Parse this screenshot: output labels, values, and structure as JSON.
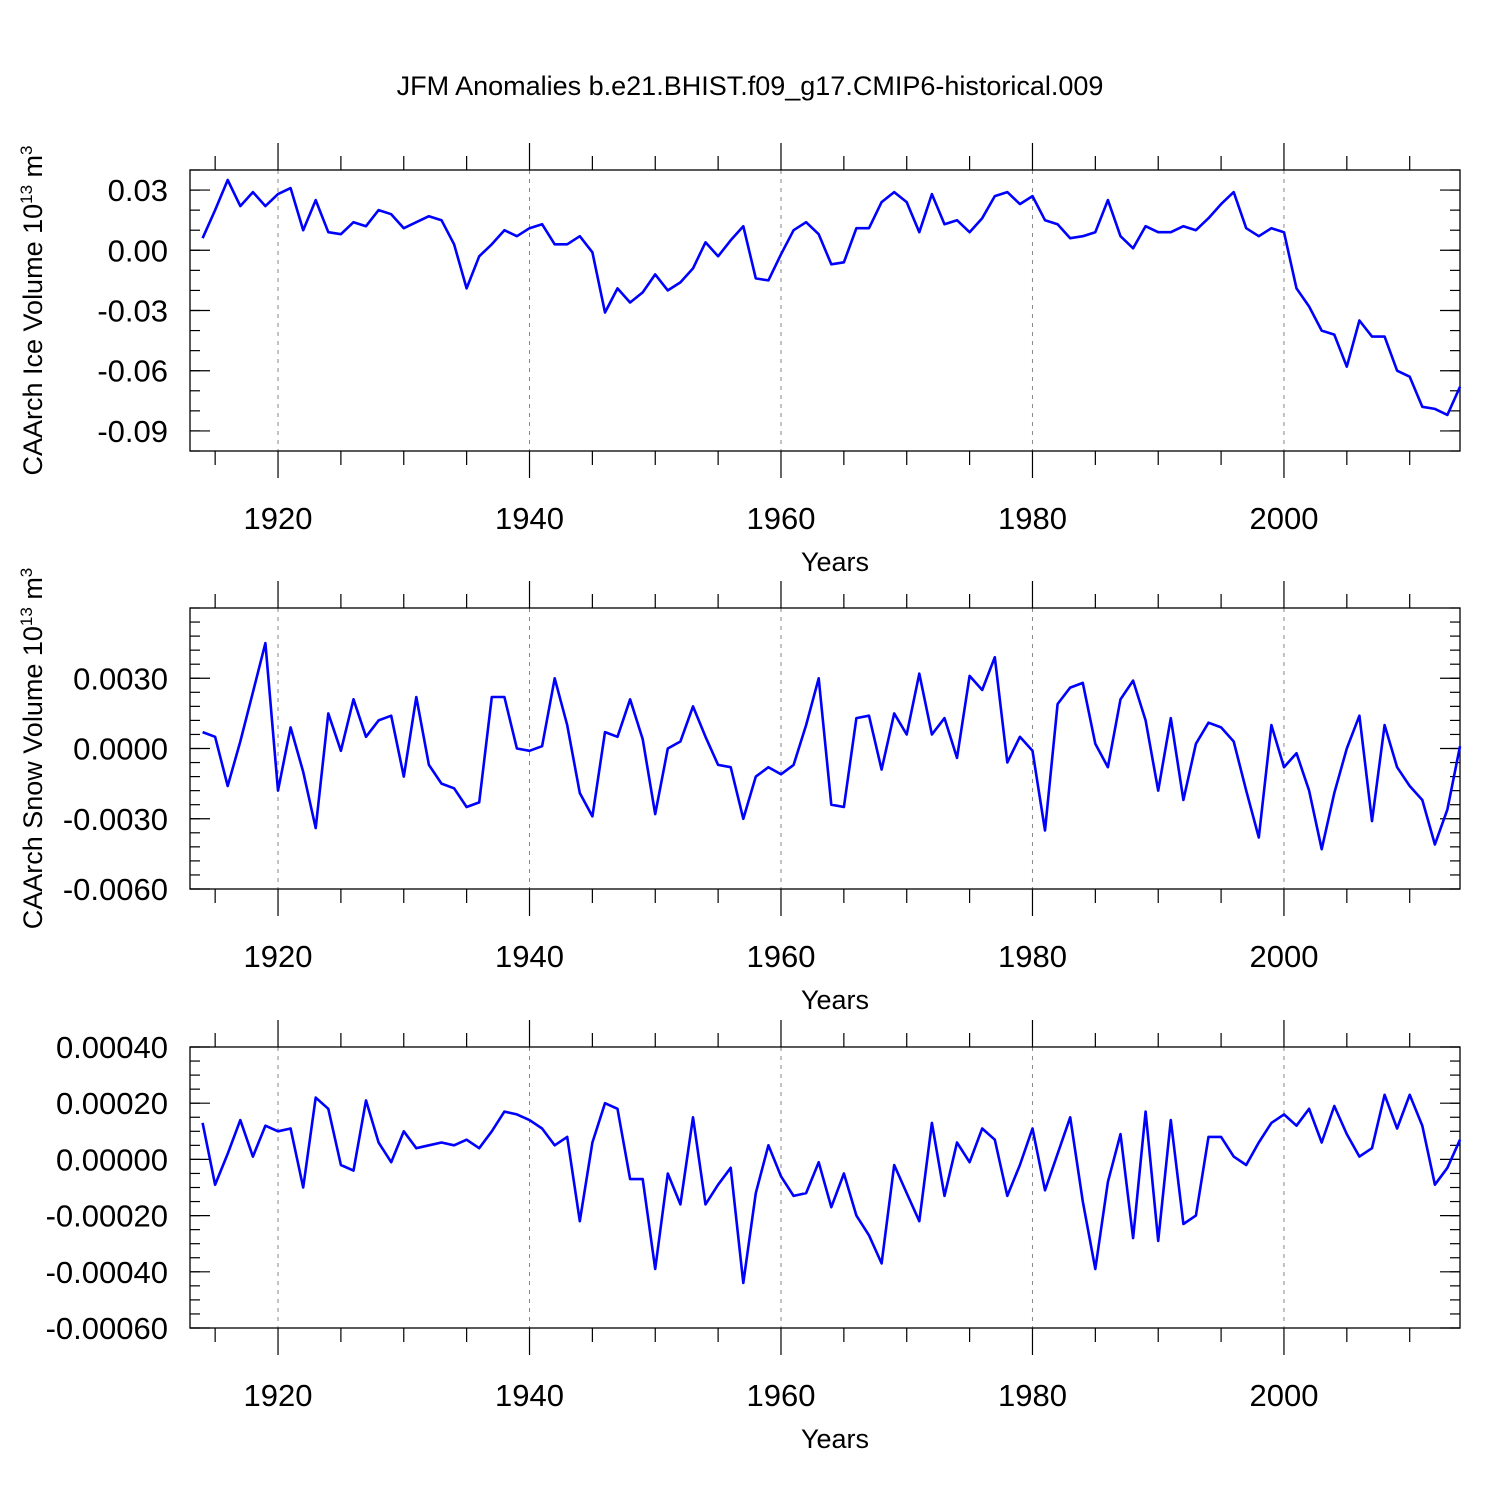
{
  "chart_data": {
    "type": "line",
    "title": "JFM Anomalies b.e21.BHIST.f09_g17.CMIP6-historical.009",
    "line_color": "#0000ff",
    "panels": [
      {
        "name": "ice-volume",
        "xlabel": "Years",
        "ylabel": "CAArch Ice Volume 10",
        "ylabel_sup1": "13",
        "ylabel_mid": " m",
        "ylabel_sup2": "3",
        "xlim": [
          1913,
          2014
        ],
        "ylim": [
          -0.1,
          0.04
        ],
        "x_major_ticks": [
          1920,
          1940,
          1960,
          1980,
          2000
        ],
        "x_tick_labels": [
          "1920",
          "1940",
          "1960",
          "1980",
          "2000"
        ],
        "y_major_ticks": [
          0.03,
          0.0,
          -0.03,
          -0.06,
          -0.09
        ],
        "y_tick_labels": [
          "0.03",
          "0.00",
          "-0.03",
          "-0.06",
          "-0.09"
        ],
        "y_minor_step": 0.01,
        "x": [
          1914,
          1915,
          1916,
          1917,
          1918,
          1919,
          1920,
          1921,
          1922,
          1923,
          1924,
          1925,
          1926,
          1927,
          1928,
          1929,
          1930,
          1931,
          1932,
          1933,
          1934,
          1935,
          1936,
          1937,
          1938,
          1939,
          1940,
          1941,
          1942,
          1943,
          1944,
          1945,
          1946,
          1947,
          1948,
          1949,
          1950,
          1951,
          1952,
          1953,
          1954,
          1955,
          1956,
          1957,
          1958,
          1959,
          1960,
          1961,
          1962,
          1963,
          1964,
          1965,
          1966,
          1967,
          1968,
          1969,
          1970,
          1971,
          1972,
          1973,
          1974,
          1975,
          1976,
          1977,
          1978,
          1979,
          1980,
          1981,
          1982,
          1983,
          1984,
          1985,
          1986,
          1987,
          1988,
          1989,
          1990,
          1991,
          1992,
          1993,
          1994,
          1995,
          1996,
          1997,
          1998,
          1999,
          2000,
          2001,
          2002,
          2003,
          2004,
          2005,
          2006,
          2007,
          2008,
          2009,
          2010,
          2011,
          2012,
          2013,
          2014
        ],
        "values": [
          0.006,
          0.02,
          0.035,
          0.022,
          0.029,
          0.022,
          0.028,
          0.031,
          0.01,
          0.025,
          0.009,
          0.008,
          0.014,
          0.012,
          0.02,
          0.018,
          0.011,
          0.014,
          0.017,
          0.015,
          0.003,
          -0.019,
          -0.003,
          0.003,
          0.01,
          0.007,
          0.011,
          0.013,
          0.003,
          0.003,
          0.007,
          -0.001,
          -0.031,
          -0.019,
          -0.026,
          -0.021,
          -0.012,
          -0.02,
          -0.016,
          -0.009,
          0.004,
          -0.003,
          0.005,
          0.012,
          -0.014,
          -0.015,
          -0.002,
          0.01,
          0.014,
          0.008,
          -0.007,
          -0.006,
          0.011,
          0.011,
          0.024,
          0.029,
          0.024,
          0.009,
          0.028,
          0.013,
          0.015,
          0.009,
          0.016,
          0.027,
          0.029,
          0.023,
          0.027,
          0.015,
          0.013,
          0.006,
          0.007,
          0.009,
          0.025,
          0.007,
          0.001,
          0.012,
          0.009,
          0.009,
          0.012,
          0.01,
          0.016,
          0.023,
          0.029,
          0.011,
          0.007,
          0.011,
          0.009,
          -0.019,
          -0.028,
          -0.04,
          -0.042,
          -0.058,
          -0.035,
          -0.043,
          -0.043,
          -0.06,
          -0.063,
          -0.078,
          -0.079,
          -0.082,
          -0.068
        ]
      },
      {
        "name": "snow-volume",
        "xlabel": "Years",
        "ylabel": "CAArch Snow Volume 10",
        "ylabel_sup1": "13",
        "ylabel_mid": " m",
        "ylabel_sup2": "3",
        "xlim": [
          1913,
          2014
        ],
        "ylim": [
          -0.006,
          0.006
        ],
        "x_major_ticks": [
          1920,
          1940,
          1960,
          1980,
          2000
        ],
        "x_tick_labels": [
          "1920",
          "1940",
          "1960",
          "1980",
          "2000"
        ],
        "y_major_ticks": [
          0.003,
          0.0,
          -0.003,
          -0.006
        ],
        "y_tick_labels": [
          "0.0030",
          "0.0000",
          "-0.0030",
          "-0.0060"
        ],
        "y_minor_step": 0.0006,
        "x": [
          1914,
          1915,
          1916,
          1917,
          1918,
          1919,
          1920,
          1921,
          1922,
          1923,
          1924,
          1925,
          1926,
          1927,
          1928,
          1929,
          1930,
          1931,
          1932,
          1933,
          1934,
          1935,
          1936,
          1937,
          1938,
          1939,
          1940,
          1941,
          1942,
          1943,
          1944,
          1945,
          1946,
          1947,
          1948,
          1949,
          1950,
          1951,
          1952,
          1953,
          1954,
          1955,
          1956,
          1957,
          1958,
          1959,
          1960,
          1961,
          1962,
          1963,
          1964,
          1965,
          1966,
          1967,
          1968,
          1969,
          1970,
          1971,
          1972,
          1973,
          1974,
          1975,
          1976,
          1977,
          1978,
          1979,
          1980,
          1981,
          1982,
          1983,
          1984,
          1985,
          1986,
          1987,
          1988,
          1989,
          1990,
          1991,
          1992,
          1993,
          1994,
          1995,
          1996,
          1997,
          1998,
          1999,
          2000,
          2001,
          2002,
          2003,
          2004,
          2005,
          2006,
          2007,
          2008,
          2009,
          2010,
          2011,
          2012,
          2013,
          2014
        ],
        "values": [
          0.0007,
          0.0005,
          -0.0016,
          0.0003,
          0.0024,
          0.0045,
          -0.0018,
          0.0009,
          -0.001,
          -0.0034,
          0.0015,
          -0.0001,
          0.0021,
          0.0005,
          0.0012,
          0.0014,
          -0.0012,
          0.0022,
          -0.0007,
          -0.0015,
          -0.0017,
          -0.0025,
          -0.0023,
          0.0022,
          0.0022,
          0.0,
          -0.0001,
          0.0001,
          0.003,
          0.001,
          -0.0019,
          -0.0029,
          0.0007,
          0.0005,
          0.0021,
          0.0004,
          -0.0028,
          0.0,
          0.0003,
          0.0018,
          0.0005,
          -0.0007,
          -0.0008,
          -0.003,
          -0.0012,
          -0.0008,
          -0.0011,
          -0.0007,
          0.001,
          0.003,
          -0.0024,
          -0.0025,
          0.0013,
          0.0014,
          -0.0009,
          0.0015,
          0.0006,
          0.0032,
          0.0006,
          0.0013,
          -0.0004,
          0.0031,
          0.0025,
          0.0039,
          -0.0006,
          0.0005,
          -0.0001,
          -0.0035,
          0.0019,
          0.0026,
          0.0028,
          0.0002,
          -0.0008,
          0.0021,
          0.0029,
          0.0012,
          -0.0018,
          0.0013,
          -0.0022,
          0.0002,
          0.0011,
          0.0009,
          0.0003,
          -0.0018,
          -0.0038,
          0.001,
          -0.0008,
          -0.0002,
          -0.0018,
          -0.0043,
          -0.0019,
          0.0,
          0.0014,
          -0.0031,
          0.001,
          -0.0008,
          -0.0016,
          -0.0022,
          -0.0041,
          -0.0026,
          0.0001
        ]
      },
      {
        "name": "third-panel",
        "xlabel": "Years",
        "ylabel": "",
        "xlim": [
          1913,
          2014
        ],
        "ylim": [
          -0.0006,
          0.0004
        ],
        "x_major_ticks": [
          1920,
          1940,
          1960,
          1980,
          2000
        ],
        "x_tick_labels": [
          "1920",
          "1940",
          "1960",
          "1980",
          "2000"
        ],
        "y_major_ticks": [
          0.0004,
          0.0002,
          0.0,
          -0.0002,
          -0.0004,
          -0.0006
        ],
        "y_tick_labels": [
          "0.00040",
          "0.00020",
          "0.00000",
          "-0.00020",
          "-0.00040",
          "-0.00060"
        ],
        "y_minor_step": 5e-05,
        "x": [
          1914,
          1915,
          1916,
          1917,
          1918,
          1919,
          1920,
          1921,
          1922,
          1923,
          1924,
          1925,
          1926,
          1927,
          1928,
          1929,
          1930,
          1931,
          1932,
          1933,
          1934,
          1935,
          1936,
          1937,
          1938,
          1939,
          1940,
          1941,
          1942,
          1943,
          1944,
          1945,
          1946,
          1947,
          1948,
          1949,
          1950,
          1951,
          1952,
          1953,
          1954,
          1955,
          1956,
          1957,
          1958,
          1959,
          1960,
          1961,
          1962,
          1963,
          1964,
          1965,
          1966,
          1967,
          1968,
          1969,
          1970,
          1971,
          1972,
          1973,
          1974,
          1975,
          1976,
          1977,
          1978,
          1979,
          1980,
          1981,
          1982,
          1983,
          1984,
          1985,
          1986,
          1987,
          1988,
          1989,
          1990,
          1991,
          1992,
          1993,
          1994,
          1995,
          1996,
          1997,
          1998,
          1999,
          2000,
          2001,
          2002,
          2003,
          2004,
          2005,
          2006,
          2007,
          2008,
          2009,
          2010,
          2011,
          2012,
          2013,
          2014
        ],
        "values": [
          0.00013,
          -9e-05,
          2e-05,
          0.00014,
          1e-05,
          0.00012,
          0.0001,
          0.00011,
          -0.0001,
          0.00022,
          0.00018,
          -2e-05,
          -4e-05,
          0.00021,
          6e-05,
          -1e-05,
          0.0001,
          4e-05,
          5e-05,
          6e-05,
          5e-05,
          7e-05,
          4e-05,
          0.0001,
          0.00017,
          0.00016,
          0.00014,
          0.00011,
          5e-05,
          8e-05,
          -0.00022,
          6e-05,
          0.0002,
          0.00018,
          -7e-05,
          -7e-05,
          -0.00039,
          -5e-05,
          -0.00016,
          0.00015,
          -0.00016,
          -9e-05,
          -3e-05,
          -0.00044,
          -0.00012,
          5e-05,
          -6e-05,
          -0.00013,
          -0.00012,
          -1e-05,
          -0.00017,
          -5e-05,
          -0.0002,
          -0.00027,
          -0.00037,
          -2e-05,
          -0.00012,
          -0.00022,
          0.00013,
          -0.00013,
          6e-05,
          -1e-05,
          0.00011,
          7e-05,
          -0.00013,
          -2e-05,
          0.00011,
          -0.00011,
          2e-05,
          0.00015,
          -0.00015,
          -0.00039,
          -8e-05,
          9e-05,
          -0.00028,
          0.00017,
          -0.00029,
          0.00014,
          -0.00023,
          -0.0002,
          8e-05,
          8e-05,
          1e-05,
          -2e-05,
          6e-05,
          0.00013,
          0.00016,
          0.00012,
          0.00018,
          6e-05,
          0.00019,
          9e-05,
          1e-05,
          4e-05,
          0.00023,
          0.00011,
          0.00023,
          0.00012,
          -9e-05,
          -3e-05,
          7e-05
        ]
      }
    ]
  }
}
